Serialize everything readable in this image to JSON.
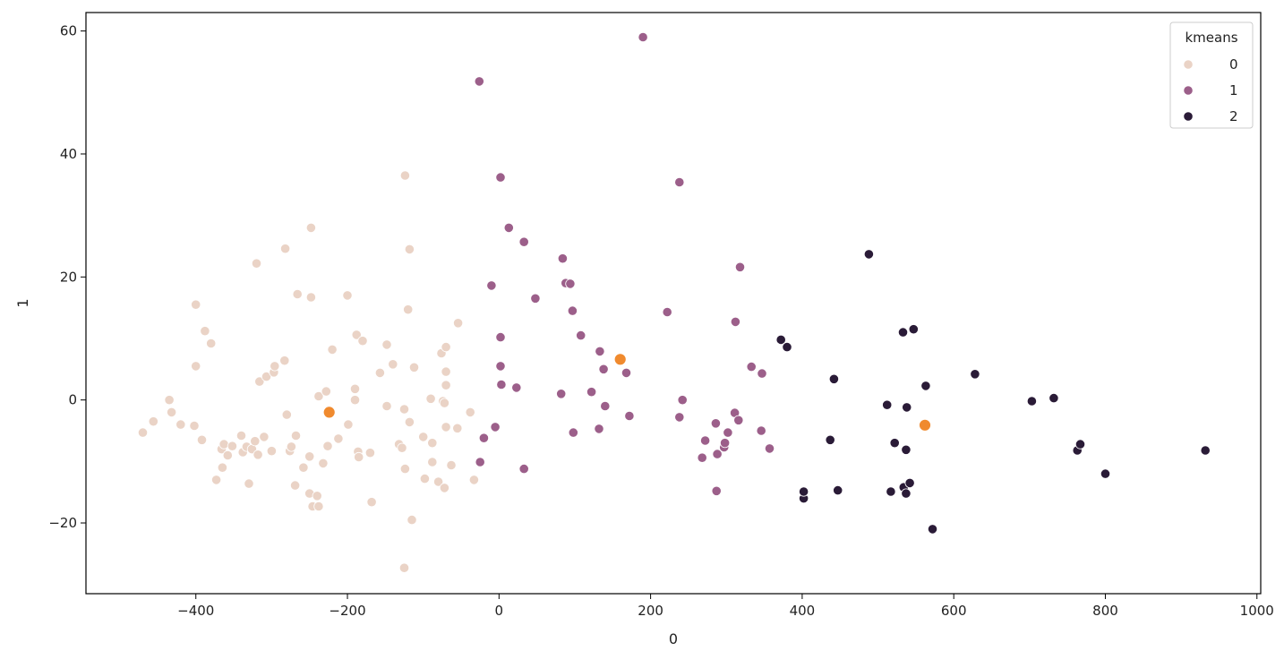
{
  "chart_data": {
    "type": "scatter",
    "xlabel": "0",
    "ylabel": "1",
    "xlim": [
      -545,
      1005
    ],
    "ylim": [
      -31.5,
      63
    ],
    "xticks": [
      -400,
      -200,
      0,
      200,
      400,
      600,
      800,
      1000
    ],
    "yticks": [
      -20,
      0,
      20,
      40,
      60
    ],
    "xtick_labels": [
      "−400",
      "−200",
      "0",
      "200",
      "400",
      "600",
      "800",
      "1000"
    ],
    "ytick_labels": [
      "−20",
      "0",
      "20",
      "40",
      "60"
    ],
    "grid": false,
    "legend": {
      "title": "kmeans",
      "placement": "top-right",
      "entries": [
        {
          "label": "0",
          "color": "#ead3c6"
        },
        {
          "label": "1",
          "color": "#9c5f8a"
        },
        {
          "label": "2",
          "color": "#2a1b37"
        }
      ]
    },
    "series": [
      {
        "name": "0",
        "color": "#ead3c6",
        "points": [
          [
            -470,
            -5.3
          ],
          [
            -456,
            -3.5
          ],
          [
            -435,
            0.0
          ],
          [
            -432,
            -2.0
          ],
          [
            -420,
            -4.0
          ],
          [
            -402,
            -4.2
          ],
          [
            -400,
            15.5
          ],
          [
            -400,
            5.5
          ],
          [
            -392,
            -6.5
          ],
          [
            -388,
            11.2
          ],
          [
            -380,
            9.2
          ],
          [
            -373,
            -13.0
          ],
          [
            -366,
            -8.0
          ],
          [
            -365,
            -11.0
          ],
          [
            -363,
            -7.2
          ],
          [
            -358,
            -9.0
          ],
          [
            -352,
            -7.5
          ],
          [
            -340,
            -5.8
          ],
          [
            -338,
            -8.5
          ],
          [
            -333,
            -7.6
          ],
          [
            -330,
            -13.6
          ],
          [
            -326,
            -8.0
          ],
          [
            -322,
            -6.7
          ],
          [
            -320,
            22.2
          ],
          [
            -318,
            -8.9
          ],
          [
            -316,
            3.0
          ],
          [
            -310,
            -6.0
          ],
          [
            -307,
            3.8
          ],
          [
            -300,
            -8.3
          ],
          [
            -297,
            4.5
          ],
          [
            -296,
            5.5
          ],
          [
            -283,
            6.4
          ],
          [
            -282,
            24.6
          ],
          [
            -280,
            -2.4
          ],
          [
            -276,
            -8.3
          ],
          [
            -274,
            -7.6
          ],
          [
            -269,
            -13.9
          ],
          [
            -268,
            -5.8
          ],
          [
            -266,
            17.2
          ],
          [
            -258,
            -11.0
          ],
          [
            -250,
            -9.2
          ],
          [
            -250,
            -15.2
          ],
          [
            -248,
            16.7
          ],
          [
            -248,
            28.0
          ],
          [
            -246,
            -17.3
          ],
          [
            -240,
            -15.6
          ],
          [
            -238,
            -17.3
          ],
          [
            -238,
            0.6
          ],
          [
            -232,
            -10.3
          ],
          [
            -228,
            1.4
          ],
          [
            -226,
            -7.5
          ],
          [
            -225,
            -1.7
          ],
          [
            -220,
            8.2
          ],
          [
            -212,
            -6.3
          ],
          [
            -200,
            17.0
          ],
          [
            -199,
            -4.0
          ],
          [
            -190,
            1.8
          ],
          [
            -190,
            0.0
          ],
          [
            -188,
            10.6
          ],
          [
            -186,
            -8.4
          ],
          [
            -185,
            -9.3
          ],
          [
            -180,
            9.6
          ],
          [
            -170,
            -8.6
          ],
          [
            -168,
            -16.6
          ],
          [
            -157,
            4.4
          ],
          [
            -148,
            9.0
          ],
          [
            -148,
            -1.0
          ],
          [
            -140,
            5.8
          ],
          [
            -132,
            -7.2
          ],
          [
            -128,
            -7.8
          ],
          [
            -124,
            -11.2
          ],
          [
            -124,
            36.5
          ],
          [
            -120,
            14.7
          ],
          [
            -118,
            24.5
          ],
          [
            -118,
            -3.6
          ],
          [
            -115,
            -19.5
          ],
          [
            -112,
            5.3
          ],
          [
            -125,
            -27.3
          ],
          [
            -100,
            -6.0
          ],
          [
            -98,
            -12.8
          ],
          [
            -90,
            0.2
          ],
          [
            -88,
            -7.0
          ],
          [
            -88,
            -10.1
          ],
          [
            -80,
            -13.3
          ],
          [
            -76,
            7.6
          ],
          [
            -74,
            -0.2
          ],
          [
            -72,
            -0.5
          ],
          [
            -72,
            -14.3
          ],
          [
            -70,
            8.6
          ],
          [
            -70,
            4.6
          ],
          [
            -70,
            2.4
          ],
          [
            -70,
            -4.4
          ],
          [
            -63,
            -10.6
          ],
          [
            -55,
            -4.6
          ],
          [
            -54,
            12.5
          ],
          [
            -38,
            -2.0
          ],
          [
            -33,
            -13.0
          ],
          [
            -125,
            -1.5
          ]
        ]
      },
      {
        "name": "1",
        "color": "#9c5f8a",
        "points": [
          [
            -26,
            51.8
          ],
          [
            -25,
            -10.1
          ],
          [
            -20,
            -6.2
          ],
          [
            -10,
            18.6
          ],
          [
            -5,
            -4.4
          ],
          [
            2,
            36.2
          ],
          [
            2,
            10.2
          ],
          [
            2,
            5.5
          ],
          [
            3,
            2.5
          ],
          [
            13,
            28.0
          ],
          [
            23,
            2.0
          ],
          [
            33,
            25.7
          ],
          [
            33,
            -11.2
          ],
          [
            48,
            16.5
          ],
          [
            82,
            1.0
          ],
          [
            84,
            23.0
          ],
          [
            88,
            19.0
          ],
          [
            94,
            18.9
          ],
          [
            97,
            14.5
          ],
          [
            98,
            -5.3
          ],
          [
            108,
            10.5
          ],
          [
            122,
            1.3
          ],
          [
            132,
            -4.7
          ],
          [
            133,
            7.9
          ],
          [
            138,
            5.0
          ],
          [
            140,
            -1.0
          ],
          [
            168,
            4.4
          ],
          [
            172,
            -2.6
          ],
          [
            190,
            59.0
          ],
          [
            222,
            14.3
          ],
          [
            238,
            -2.8
          ],
          [
            238,
            35.4
          ],
          [
            242,
            0.0
          ],
          [
            268,
            -9.4
          ],
          [
            272,
            -6.6
          ],
          [
            286,
            -3.8
          ],
          [
            287,
            -14.8
          ],
          [
            288,
            -8.8
          ],
          [
            297,
            -7.7
          ],
          [
            298,
            -7.0
          ],
          [
            302,
            -5.3
          ],
          [
            311,
            -2.1
          ],
          [
            312,
            12.7
          ],
          [
            316,
            -3.3
          ],
          [
            318,
            21.6
          ],
          [
            333,
            5.4
          ],
          [
            346,
            -5.0
          ],
          [
            347,
            4.3
          ],
          [
            357,
            -7.9
          ]
        ]
      },
      {
        "name": "2",
        "color": "#2a1b37",
        "points": [
          [
            372,
            9.8
          ],
          [
            380,
            8.6
          ],
          [
            402,
            -16.0
          ],
          [
            402,
            -14.9
          ],
          [
            437,
            -6.5
          ],
          [
            442,
            3.4
          ],
          [
            447,
            -14.7
          ],
          [
            488,
            23.7
          ],
          [
            512,
            -0.8
          ],
          [
            517,
            -14.9
          ],
          [
            522,
            -7.0
          ],
          [
            533,
            11.0
          ],
          [
            534,
            -14.2
          ],
          [
            537,
            -15.2
          ],
          [
            537,
            -8.1
          ],
          [
            538,
            -1.2
          ],
          [
            542,
            -13.5
          ],
          [
            547,
            11.5
          ],
          [
            563,
            2.3
          ],
          [
            572,
            -21.0
          ],
          [
            628,
            4.2
          ],
          [
            703,
            -0.2
          ],
          [
            732,
            0.3
          ],
          [
            763,
            -8.2
          ],
          [
            767,
            -7.2
          ],
          [
            800,
            -12.0
          ],
          [
            932,
            -8.2
          ]
        ]
      },
      {
        "name": "",
        "color": "#f08a2e",
        "points": [
          [
            -224,
            -2.0
          ],
          [
            160,
            6.6
          ],
          [
            562,
            -4.1
          ]
        ]
      }
    ]
  }
}
